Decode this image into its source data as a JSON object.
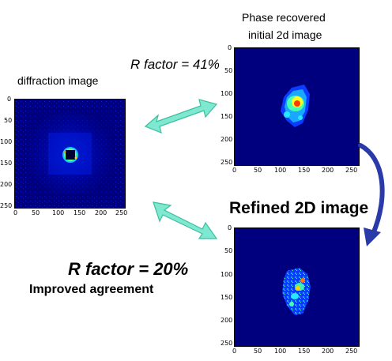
{
  "left_panel": {
    "title": "diffraction image",
    "y_ticks": [
      "0",
      "50",
      "100",
      "150",
      "200",
      "250"
    ],
    "x_ticks": [
      "0",
      "50",
      "100",
      "150",
      "200",
      "250"
    ]
  },
  "top_right_panel": {
    "title_line1": "Phase recovered",
    "title_line2": "initial 2d image",
    "y_ticks": [
      "0",
      "50",
      "100",
      "150",
      "200",
      "250"
    ],
    "x_ticks": [
      "0",
      "50",
      "100",
      "150",
      "200",
      "250"
    ]
  },
  "bottom_right_panel": {
    "title": "Refined 2D image",
    "y_ticks": [
      "0",
      "50",
      "100",
      "150",
      "200",
      "250"
    ],
    "x_ticks": [
      "0",
      "50",
      "100",
      "150",
      "200",
      "250"
    ]
  },
  "r_factor_initial": "R factor = 41%",
  "r_factor_refined": "R factor = 20%",
  "improved_text": "Improved agreement",
  "colors": {
    "background_navy": "#00007f",
    "arrow_teal": "#7fe8d0",
    "arrow_edge": "#3bbf9e",
    "curve_arrow": "#2a3aa8"
  }
}
